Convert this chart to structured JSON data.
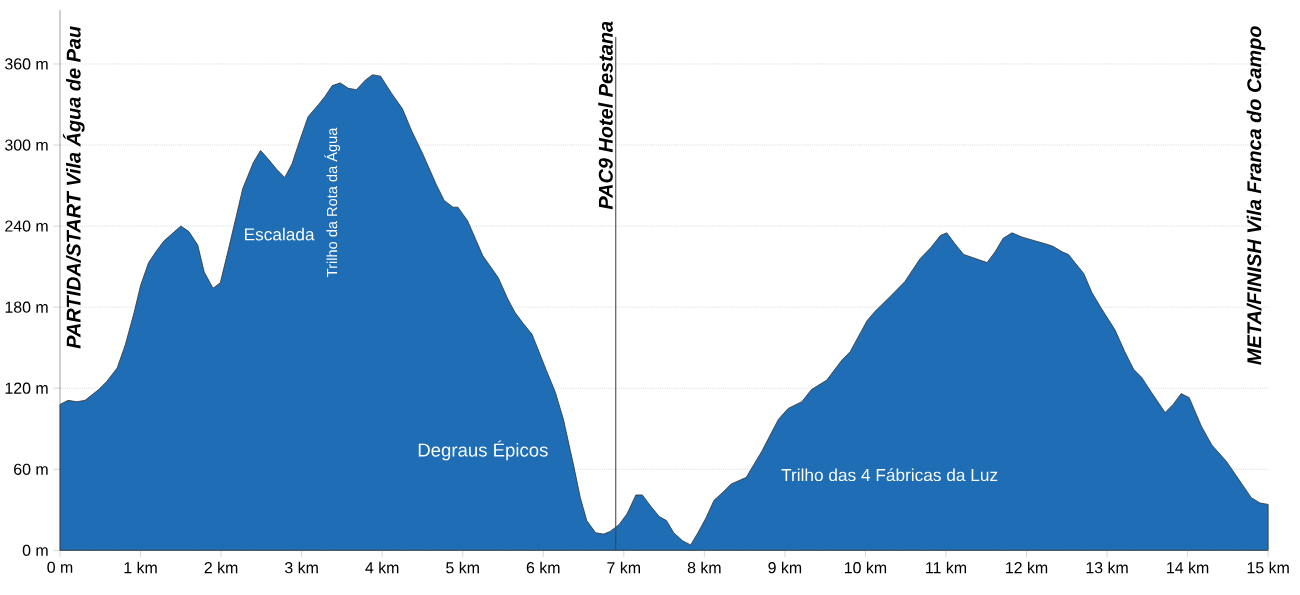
{
  "chart_data": {
    "type": "area",
    "x": [
      0,
      0.1,
      0.21,
      0.31,
      0.48,
      0.58,
      0.71,
      0.81,
      0.92,
      1.0,
      1.1,
      1.19,
      1.29,
      1.5,
      1.6,
      1.71,
      1.79,
      1.9,
      1.99,
      2.1,
      2.27,
      2.4,
      2.49,
      2.58,
      2.69,
      2.79,
      2.88,
      2.98,
      3.08,
      3.21,
      3.29,
      3.38,
      3.48,
      3.58,
      3.68,
      3.79,
      3.88,
      3.98,
      4.12,
      4.25,
      4.37,
      4.5,
      4.67,
      4.77,
      4.88,
      4.94,
      5.06,
      5.25,
      5.44,
      5.56,
      5.65,
      5.75,
      5.86,
      6.04,
      6.15,
      6.25,
      6.38,
      6.46,
      6.54,
      6.65,
      6.75,
      6.83,
      6.94,
      7.04,
      7.15,
      7.23,
      7.33,
      7.44,
      7.53,
      7.62,
      7.73,
      7.83,
      7.92,
      8.02,
      8.12,
      8.23,
      8.33,
      8.52,
      8.71,
      8.92,
      9.04,
      9.21,
      9.33,
      9.52,
      9.71,
      9.81,
      10.02,
      10.12,
      10.31,
      10.49,
      10.68,
      10.81,
      10.93,
      11.01,
      11.11,
      11.22,
      11.51,
      11.61,
      11.71,
      11.82,
      11.94,
      12.11,
      12.23,
      12.33,
      12.44,
      12.52,
      12.6,
      12.71,
      12.81,
      12.93,
      13.1,
      13.22,
      13.33,
      13.43,
      13.55,
      13.72,
      13.82,
      13.92,
      14.02,
      14.17,
      14.3,
      14.48,
      14.63,
      14.79,
      14.9,
      15
    ],
    "series": [
      {
        "color": "#1f6eb5",
        "values": [
          108,
          111,
          110,
          111,
          119,
          125,
          135,
          152,
          176,
          196,
          213,
          221,
          229,
          240,
          236,
          226,
          206,
          194,
          198,
          225,
          268,
          287,
          296,
          290,
          282,
          276,
          286,
          304,
          321,
          330,
          336,
          344,
          346,
          342,
          341,
          348,
          352,
          351,
          338,
          327,
          310,
          294,
          271,
          259,
          254,
          254,
          244,
          218,
          202,
          186,
          176,
          168,
          160,
          133,
          117,
          97,
          62,
          39,
          22,
          13,
          12,
          14,
          19,
          27,
          41,
          41,
          33,
          25,
          22,
          13,
          7,
          4,
          13,
          24,
          37,
          43,
          49,
          54,
          73,
          97,
          105,
          110,
          119,
          126,
          141,
          147,
          170,
          177,
          188,
          199,
          216,
          224,
          233,
          235,
          227,
          219,
          213,
          221,
          231,
          235,
          232,
          229,
          227,
          225,
          221,
          219,
          213,
          205,
          191,
          179,
          163,
          147,
          134,
          128,
          117,
          102,
          108,
          116,
          113,
          92,
          78,
          66,
          53,
          39,
          35,
          34
        ]
      }
    ],
    "xlim": [
      0,
      15
    ],
    "xticks": [
      {
        "value": 0,
        "label": "0 m"
      },
      {
        "value": 1,
        "label": "1 km"
      },
      {
        "value": 2,
        "label": "2 km"
      },
      {
        "value": 3,
        "label": "3 km"
      },
      {
        "value": 4,
        "label": "4 km"
      },
      {
        "value": 5,
        "label": "5 km"
      },
      {
        "value": 6,
        "label": "6 km"
      },
      {
        "value": 7,
        "label": "7 km"
      },
      {
        "value": 8,
        "label": "8 km"
      },
      {
        "value": 9,
        "label": "9 km"
      },
      {
        "value": 10,
        "label": "10 km"
      },
      {
        "value": 11,
        "label": "11 km"
      },
      {
        "value": 12,
        "label": "12 km"
      },
      {
        "value": 13,
        "label": "13 km"
      },
      {
        "value": 14,
        "label": "14 km"
      },
      {
        "value": 15,
        "label": "15 km"
      }
    ],
    "ylim": [
      0,
      400
    ],
    "yticks": [
      {
        "value": 0,
        "label": "0 m"
      },
      {
        "value": 60,
        "label": "60 m"
      },
      {
        "value": 120,
        "label": "120 m"
      },
      {
        "value": 180,
        "label": "180 m"
      },
      {
        "value": 240,
        "label": "240 m"
      },
      {
        "value": 300,
        "label": "300 m"
      },
      {
        "value": 360,
        "label": "360 m"
      }
    ],
    "grid": "y",
    "ref_lines": [
      {
        "axis": "x",
        "value": 6.9,
        "label": "PAC9 Hotel Pestana",
        "color": "#444444"
      }
    ],
    "annotations": [
      "PARTIDA/START Vila Água de Pau",
      "META/FINISH Vila Franca do Campo",
      "Escalada",
      "Trilho da Rota da Água",
      "Degraus Épicos",
      "Trilho das 4 Fábricas da Luz"
    ]
  }
}
